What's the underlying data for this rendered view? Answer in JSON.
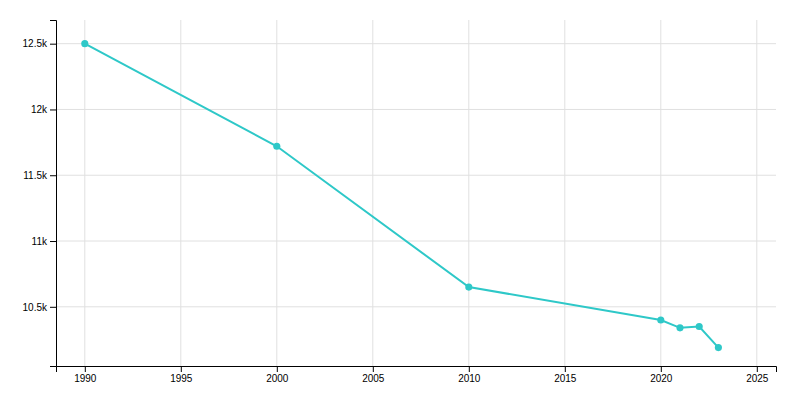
{
  "chart_data": {
    "type": "line",
    "x": [
      1990,
      2000,
      2010,
      2020,
      2021,
      2022,
      2023
    ],
    "values": [
      12500,
      11720,
      10650,
      10400,
      10340,
      10350,
      10190
    ],
    "color": "#2ec8c8",
    "marker": "circle",
    "xlim": [
      1988.5,
      2026
    ],
    "ylim": [
      10050,
      12680
    ],
    "xticks": [
      1990,
      1995,
      2000,
      2005,
      2010,
      2015,
      2020,
      2025
    ],
    "yticks": [
      {
        "value": 10500,
        "label": "10.5k"
      },
      {
        "value": 11000,
        "label": "11k"
      },
      {
        "value": 11500,
        "label": "11.5k"
      },
      {
        "value": 12000,
        "label": "12k"
      },
      {
        "value": 12500,
        "label": "12.5k"
      }
    ],
    "grid": true
  }
}
